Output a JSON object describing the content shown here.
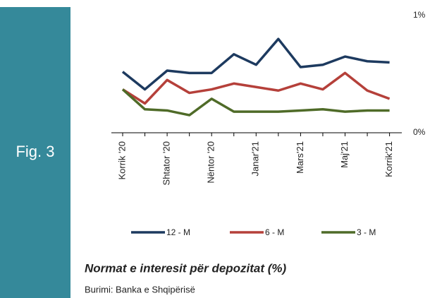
{
  "chart_data": {
    "type": "line",
    "figure_label": "Fig. 3",
    "title": "Normat e interesit për depozitat (%)",
    "source": "Burimi: Banka e Shqipërisë",
    "categories": [
      "Korrik '20",
      null,
      "Shtator '20",
      null,
      "Nëntor '20",
      null,
      "Janar'21",
      null,
      "Mars'21",
      null,
      "Maj'21",
      null,
      "Korrik'21"
    ],
    "series": [
      {
        "name": "12 - M",
        "color": "#1d3a5f",
        "values": [
          0.52,
          0.37,
          0.53,
          0.51,
          0.51,
          0.67,
          0.58,
          0.8,
          0.56,
          0.58,
          0.65,
          0.61,
          0.6
        ]
      },
      {
        "name": "6 - M",
        "color": "#b5403a",
        "values": [
          0.37,
          0.25,
          0.45,
          0.34,
          0.37,
          0.42,
          0.39,
          0.36,
          0.42,
          0.37,
          0.51,
          0.36,
          0.29
        ]
      },
      {
        "name": "3 - M",
        "color": "#4f6b28",
        "values": [
          0.37,
          0.2,
          0.19,
          0.15,
          0.29,
          0.18,
          0.18,
          0.18,
          0.19,
          0.2,
          0.18,
          0.19,
          0.19
        ]
      }
    ],
    "ylim": [
      0,
      1
    ],
    "yticks": [
      {
        "value": 0,
        "label": "0%"
      },
      {
        "value": 1,
        "label": "1%"
      }
    ],
    "legend": "bottom"
  }
}
